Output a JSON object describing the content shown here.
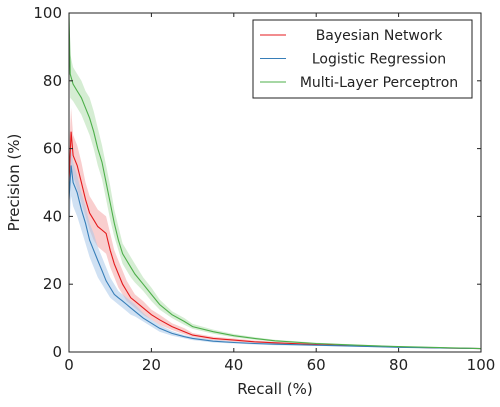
{
  "chart_data": {
    "type": "line",
    "xlabel": "Recall (%)",
    "ylabel": "Precision (%)",
    "xlim": [
      0,
      100
    ],
    "ylim": [
      0,
      100
    ],
    "xticks": [
      0,
      20,
      40,
      60,
      80,
      100
    ],
    "yticks": [
      0,
      20,
      40,
      60,
      80,
      100
    ],
    "grid": false,
    "legend_position": "top-right",
    "series": [
      {
        "name": "Bayesian Network",
        "color": "#e41a1c",
        "band_color": "#f4a6a6",
        "x": [
          0,
          0.5,
          1,
          2,
          3,
          4,
          5,
          6,
          7,
          8,
          9,
          10,
          11,
          12,
          13,
          14,
          15,
          16,
          18,
          20,
          22,
          25,
          28,
          30,
          35,
          40,
          45,
          50,
          60,
          70,
          80,
          90,
          100
        ],
        "y": [
          50,
          65,
          58,
          55,
          50,
          45,
          41,
          39,
          37,
          36,
          35,
          30,
          26,
          23,
          20,
          18,
          16,
          15,
          13,
          11,
          9.5,
          7.5,
          6,
          5,
          4,
          3.5,
          3,
          2.7,
          2.2,
          1.8,
          1.5,
          1.2,
          1
        ],
        "y_low": [
          40,
          55,
          52,
          48,
          44,
          40,
          36,
          33,
          31,
          30,
          29,
          25,
          22,
          19,
          17,
          15,
          14,
          13,
          11,
          9.5,
          8,
          6.5,
          5.2,
          4.5,
          3.5,
          3,
          2.7,
          2.4,
          2,
          1.6,
          1.3,
          1.1,
          0.9
        ],
        "y_high": [
          60,
          72,
          64,
          61,
          56,
          50,
          46,
          44,
          42,
          41,
          40,
          35,
          30,
          27,
          24,
          21,
          19,
          17,
          15,
          12.5,
          11,
          8.5,
          7,
          5.6,
          4.5,
          4,
          3.4,
          3,
          2.4,
          2,
          1.7,
          1.3,
          1.1
        ]
      },
      {
        "name": "Logistic Regression",
        "color": "#377eb8",
        "band_color": "#a9c9ea",
        "x": [
          0,
          0.5,
          1,
          2,
          3,
          4,
          5,
          6,
          7,
          8,
          9,
          10,
          11,
          12,
          13,
          14,
          15,
          16,
          18,
          20,
          22,
          25,
          28,
          30,
          35,
          40,
          45,
          50,
          60,
          70,
          80,
          90,
          100
        ],
        "y": [
          45,
          55,
          50,
          47,
          42,
          38,
          33,
          30,
          27,
          24,
          21,
          19,
          17,
          16,
          15,
          14,
          13,
          12,
          10,
          8.5,
          7,
          5.5,
          4.5,
          4,
          3.2,
          2.8,
          2.5,
          2.3,
          2,
          1.7,
          1.4,
          1.2,
          1
        ],
        "y_low": [
          35,
          46,
          43,
          40,
          36,
          32,
          28,
          25,
          22,
          20,
          18,
          16,
          15,
          14,
          13,
          12,
          11,
          10.5,
          9,
          7.5,
          6,
          4.8,
          4,
          3.5,
          2.8,
          2.5,
          2.2,
          2,
          1.8,
          1.5,
          1.3,
          1.1,
          0.9
        ],
        "y_high": [
          55,
          60,
          56,
          52,
          47,
          43,
          38,
          35,
          31,
          28,
          25,
          22,
          20,
          18,
          17,
          16,
          15,
          14,
          11.5,
          9.5,
          8,
          6.2,
          5,
          4.5,
          3.6,
          3.1,
          2.8,
          2.6,
          2.2,
          1.9,
          1.6,
          1.3,
          1.1
        ]
      },
      {
        "name": "Multi-Layer Perceptron",
        "color": "#4daf4a",
        "band_color": "#b3dfae",
        "x": [
          0,
          0.3,
          1,
          2,
          3,
          4,
          5,
          6,
          7,
          8,
          9,
          10,
          11,
          12,
          13,
          14,
          15,
          16,
          18,
          20,
          22,
          25,
          28,
          30,
          35,
          40,
          45,
          50,
          60,
          70,
          80,
          90,
          100
        ],
        "y": [
          100,
          82,
          79,
          77,
          75,
          72,
          69,
          65,
          60,
          56,
          50,
          44,
          38,
          33,
          29,
          27,
          25,
          23,
          20,
          17,
          14,
          11,
          9,
          7.5,
          6,
          4.8,
          4,
          3.3,
          2.5,
          2,
          1.6,
          1.3,
          1
        ],
        "y_low": [
          90,
          75,
          74,
          72,
          70,
          67,
          64,
          60,
          55,
          51,
          45,
          39,
          34,
          30,
          26,
          24,
          22,
          20.5,
          18,
          15,
          12.5,
          10,
          8,
          6.8,
          5.4,
          4.3,
          3.6,
          3,
          2.3,
          1.8,
          1.5,
          1.2,
          0.9
        ],
        "y_high": [
          100,
          88,
          84,
          82,
          80,
          77,
          75,
          71,
          66,
          61,
          55,
          49,
          42,
          37,
          32,
          30,
          28,
          26,
          22,
          19,
          15.5,
          12,
          10,
          8.3,
          6.6,
          5.3,
          4.4,
          3.6,
          2.7,
          2.2,
          1.7,
          1.4,
          1.1
        ]
      }
    ]
  }
}
